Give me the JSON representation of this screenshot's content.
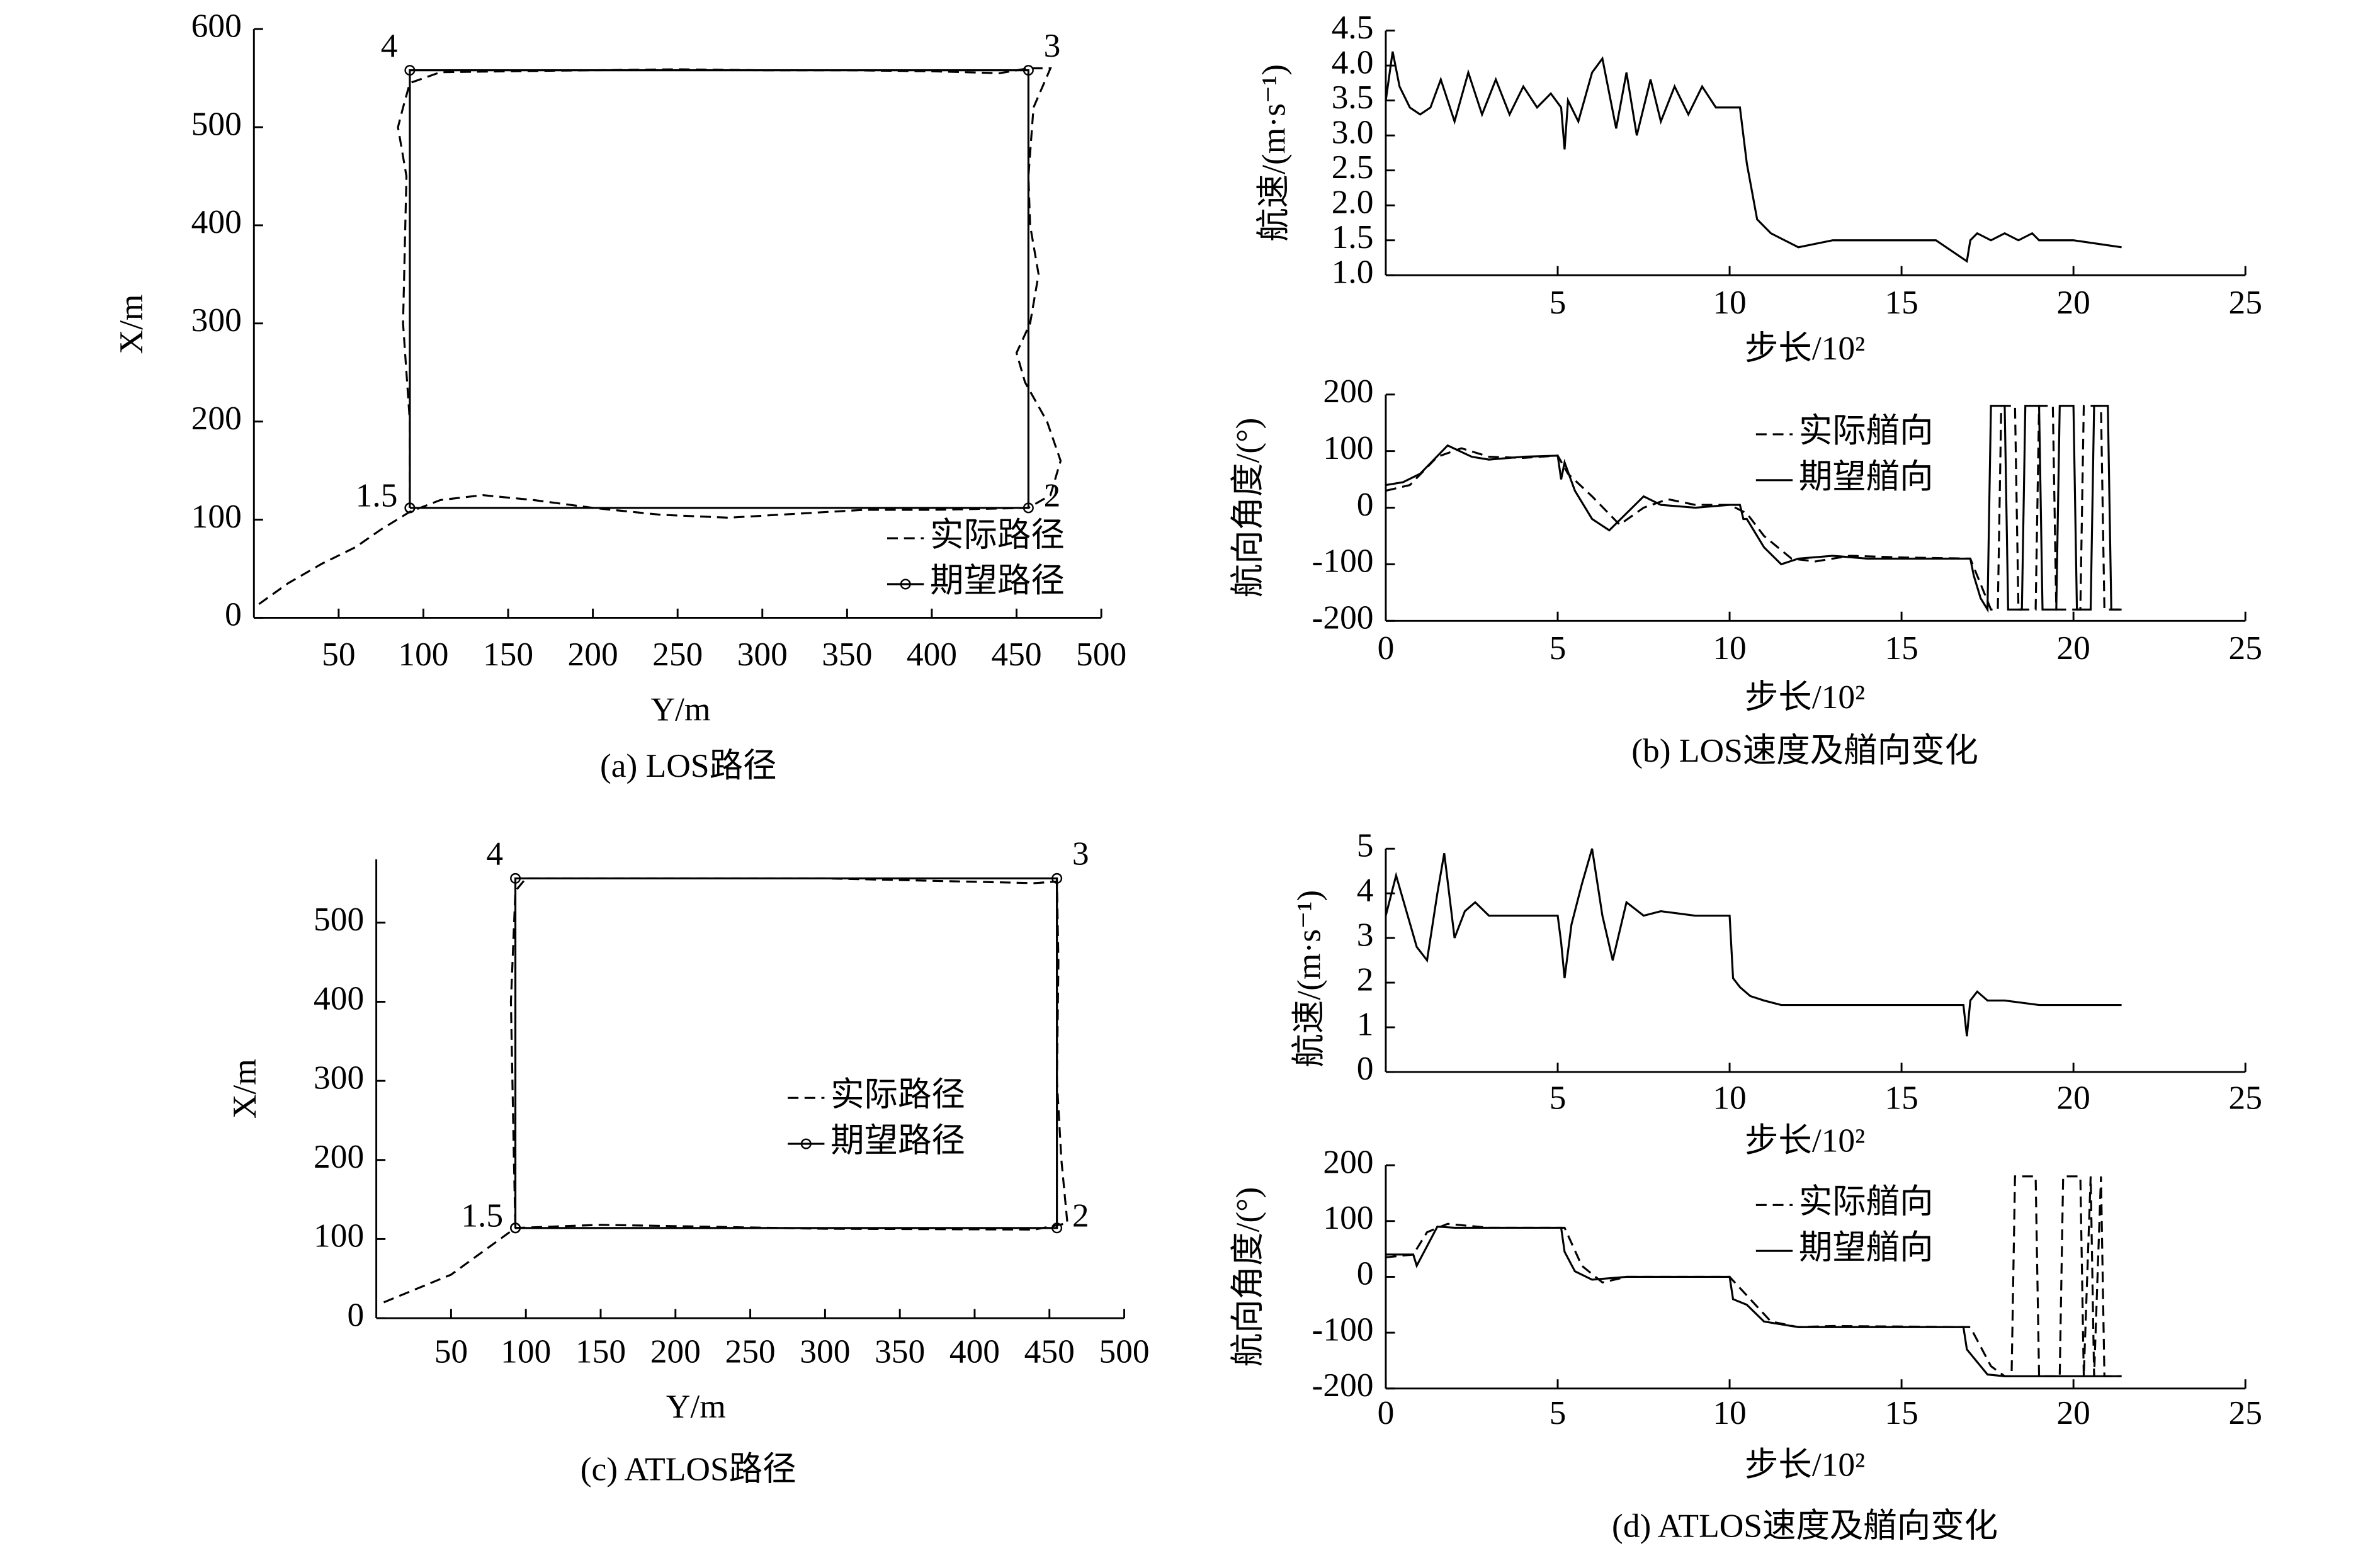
{
  "chart_data": [
    {
      "type": "line",
      "x_label": "Y/m",
      "y_label": "X/m",
      "caption": "(a) LOS路径",
      "xlim": [
        0,
        500
      ],
      "xticks": [
        50,
        100,
        150,
        200,
        250,
        300,
        350,
        400,
        450,
        500
      ],
      "ylim": [
        0,
        600
      ],
      "yticks": [
        0,
        100,
        200,
        300,
        400,
        500,
        600
      ],
      "legend": "lower right",
      "series": [
        {
          "name": "实际路径",
          "color": "#000000",
          "style": "dashed",
          "x": [
            3,
            20,
            40,
            60,
            75,
            92,
            110,
            135,
            165,
            200,
            240,
            280,
            320,
            360,
            400,
            430,
            457,
            470,
            476,
            468,
            455,
            450,
            458,
            463,
            458,
            457,
            460,
            470,
            457,
            440,
            400,
            350,
            300,
            250,
            200,
            150,
            110,
            92,
            88,
            85,
            90,
            88,
            92,
            92
          ],
          "values": [
            14,
            35,
            55,
            72,
            90,
            108,
            120,
            125,
            120,
            112,
            105,
            102,
            106,
            110,
            110,
            111,
            112,
            125,
            160,
            200,
            240,
            270,
            300,
            350,
            400,
            450,
            520,
            560,
            560,
            555,
            557,
            558,
            558,
            559,
            558,
            557,
            556,
            545,
            520,
            500,
            450,
            300,
            200,
            112
          ]
        },
        {
          "name": "期望路径",
          "color": "#000000",
          "style": "solid",
          "marker": "circle",
          "x": [
            92,
            457,
            457,
            92,
            92
          ],
          "values": [
            112,
            112,
            558,
            558,
            112
          ],
          "point_labels": [
            "1.5",
            "2",
            "3",
            "4",
            null
          ]
        }
      ]
    },
    {
      "type": "line",
      "x_label": "步长/10²",
      "y_label": "航速/(m·s⁻¹)",
      "xlim": [
        0,
        25
      ],
      "xticks": [
        5,
        10,
        15,
        20,
        25
      ],
      "ylim": [
        1,
        4.5
      ],
      "yticks": [
        {
          "value": 1,
          "label": "1.0"
        },
        1.5,
        {
          "value": 2,
          "label": "2.0"
        },
        2.5,
        {
          "value": 3,
          "label": "3.0"
        },
        3.5,
        {
          "value": 4,
          "label": "4.0"
        },
        4.5
      ],
      "color": "#000000",
      "x": [
        0,
        0.2,
        0.4,
        0.7,
        1.0,
        1.3,
        1.6,
        2.0,
        2.4,
        2.8,
        3.2,
        3.6,
        4.0,
        4.4,
        4.8,
        5.1,
        5.2,
        5.3,
        5.6,
        6.0,
        6.3,
        6.7,
        7.0,
        7.3,
        7.7,
        8.0,
        8.4,
        8.8,
        9.2,
        9.6,
        10.0,
        10.3,
        10.5,
        10.8,
        11.2,
        11.6,
        12.0,
        13,
        14,
        15,
        16,
        16.9,
        17.0,
        17.2,
        17.6,
        18,
        18.4,
        18.8,
        19,
        20,
        21.4
      ],
      "values": [
        3.5,
        4.2,
        3.7,
        3.4,
        3.3,
        3.4,
        3.8,
        3.2,
        3.9,
        3.3,
        3.8,
        3.3,
        3.7,
        3.4,
        3.6,
        3.4,
        2.8,
        3.5,
        3.2,
        3.9,
        4.1,
        3.1,
        3.9,
        3.0,
        3.8,
        3.2,
        3.7,
        3.3,
        3.7,
        3.4,
        3.4,
        3.4,
        2.6,
        1.8,
        1.6,
        1.5,
        1.4,
        1.5,
        1.5,
        1.5,
        1.5,
        1.2,
        1.5,
        1.6,
        1.5,
        1.6,
        1.5,
        1.6,
        1.5,
        1.5,
        1.4
      ]
    },
    {
      "type": "line",
      "x_label": "步长/10²",
      "y_label": "航向角度/(°)",
      "caption": "(b) LOS速度及艏向变化",
      "xlim": [
        0,
        25
      ],
      "xticks": [
        0,
        5,
        10,
        15,
        20,
        25
      ],
      "ylim": [
        -200,
        200
      ],
      "yticks": [
        -200,
        -100,
        0,
        100,
        200
      ],
      "legend": "upper right",
      "series": [
        {
          "name": "实际艏向",
          "color": "#000000",
          "style": "dashed",
          "x": [
            0,
            0.7,
            1.5,
            2.2,
            3,
            4,
            5,
            5.3,
            6,
            6.8,
            7.5,
            8.2,
            9,
            10,
            10.5,
            11,
            11.8,
            12.5,
            13.5,
            15,
            17,
            17.4,
            17.6,
            17.8,
            17.9,
            18.3,
            18.4,
            18.9,
            19,
            19.4,
            19.5,
            20.2,
            20.3,
            20.8,
            20.9,
            21.4
          ],
          "values": [
            30,
            40,
            90,
            105,
            90,
            88,
            92,
            60,
            20,
            -30,
            0,
            15,
            5,
            5,
            -10,
            -50,
            -90,
            -95,
            -85,
            -88,
            -90,
            -150,
            -180,
            -180,
            180,
            180,
            -180,
            -180,
            180,
            180,
            -180,
            -180,
            180,
            180,
            -180,
            -180
          ]
        },
        {
          "name": "期望艏向",
          "color": "#000000",
          "style": "solid",
          "x": [
            0,
            0.5,
            1,
            1.8,
            2.5,
            3,
            4,
            5,
            5.1,
            5.2,
            5.5,
            6,
            6.5,
            7,
            7.5,
            8,
            9,
            10,
            10.3,
            10.4,
            10.5,
            11,
            11.5,
            12,
            13,
            14,
            15,
            16,
            17,
            17.1,
            17.3,
            17.5,
            17.6,
            17.7,
            18,
            18.1,
            18.5,
            18.6,
            19,
            19.1,
            19.5,
            19.6,
            20,
            20.1,
            20.5,
            20.6,
            21,
            21.1,
            21.4
          ],
          "values": [
            40,
            45,
            60,
            110,
            90,
            85,
            90,
            92,
            50,
            80,
            30,
            -20,
            -40,
            -10,
            20,
            5,
            0,
            5,
            5,
            -20,
            -20,
            -70,
            -100,
            -90,
            -85,
            -90,
            -90,
            -90,
            -90,
            -120,
            -160,
            -180,
            180,
            180,
            180,
            -180,
            -180,
            180,
            180,
            -180,
            -180,
            180,
            180,
            -180,
            -180,
            180,
            180,
            -180,
            -180
          ]
        }
      ]
    },
    {
      "type": "line",
      "x_label": "Y/m",
      "y_label": "X/m",
      "caption": "(c) ATLOS路径",
      "xlim": [
        0,
        500
      ],
      "xticks": [
        50,
        100,
        150,
        200,
        250,
        300,
        350,
        400,
        450,
        500
      ],
      "ylim": [
        0,
        580
      ],
      "yticks": [
        0,
        100,
        200,
        300,
        400,
        500
      ],
      "legend": "center right",
      "series": [
        {
          "name": "实际路径",
          "color": "#000000",
          "style": "dashed",
          "x": [
            5,
            50,
            93,
            150,
            300,
            440,
            462,
            458,
            455,
            456,
            455,
            440,
            300,
            100,
            93,
            90,
            92,
            93
          ],
          "values": [
            20,
            55,
            114,
            118,
            113,
            112,
            120,
            200,
            300,
            450,
            552,
            550,
            556,
            556,
            540,
            400,
            200,
            114
          ]
        },
        {
          "name": "期望路径",
          "color": "#000000",
          "style": "solid",
          "marker": "circle",
          "x": [
            93,
            455,
            455,
            93,
            93
          ],
          "values": [
            114,
            114,
            556,
            556,
            114
          ],
          "point_labels": [
            "1.5",
            "2",
            "3",
            "4",
            null
          ]
        }
      ]
    },
    {
      "type": "line",
      "x_label": "步长/10²",
      "y_label": "航速/(m·s⁻¹)",
      "xlim": [
        0,
        25
      ],
      "xticks": [
        5,
        10,
        15,
        20,
        25
      ],
      "ylim": [
        0,
        5
      ],
      "yticks": [
        0,
        1,
        2,
        3,
        4,
        5
      ],
      "color": "#000000",
      "x": [
        0,
        0.3,
        0.6,
        0.9,
        1.2,
        1.5,
        1.7,
        2.0,
        2.3,
        2.6,
        3,
        4,
        5,
        5.1,
        5.2,
        5.4,
        5.7,
        6.0,
        6.3,
        6.6,
        7,
        7.5,
        8,
        9,
        10,
        10.1,
        10.3,
        10.6,
        11,
        11.5,
        12,
        13,
        15,
        16.8,
        16.9,
        17.0,
        17.2,
        17.5,
        18,
        19,
        21.4
      ],
      "values": [
        3.5,
        4.4,
        3.6,
        2.8,
        2.5,
        4.0,
        4.9,
        3.0,
        3.6,
        3.8,
        3.5,
        3.5,
        3.5,
        2.9,
        2.1,
        3.3,
        4.2,
        5.0,
        3.5,
        2.5,
        3.8,
        3.5,
        3.6,
        3.5,
        3.5,
        2.1,
        1.9,
        1.7,
        1.6,
        1.5,
        1.5,
        1.5,
        1.5,
        1.5,
        0.8,
        1.6,
        1.8,
        1.6,
        1.6,
        1.5,
        1.5
      ]
    },
    {
      "type": "line",
      "x_label": "步长/10²",
      "y_label": "航向角度/(°)",
      "caption": "(d) ATLOS速度及艏向变化",
      "xlim": [
        0,
        25
      ],
      "xticks": [
        0,
        5,
        10,
        15,
        20,
        25
      ],
      "ylim": [
        -200,
        200
      ],
      "yticks": [
        -200,
        -100,
        0,
        100,
        200
      ],
      "legend": "upper right",
      "series": [
        {
          "name": "实际艏向",
          "color": "#000000",
          "style": "dashed",
          "x": [
            0,
            0.8,
            1.2,
            1.8,
            3,
            5.2,
            5.7,
            6.3,
            7,
            10,
            10.6,
            11.2,
            12,
            13,
            17,
            17.6,
            18,
            18.2,
            18.3,
            18.9,
            19.0,
            19.6,
            19.7,
            20.2,
            20.3,
            20.5,
            20.6,
            20.8,
            20.9,
            21.4
          ],
          "values": [
            35,
            40,
            80,
            95,
            88,
            88,
            20,
            -10,
            0,
            0,
            -40,
            -80,
            -90,
            -88,
            -90,
            -160,
            -178,
            -178,
            180,
            180,
            -178,
            -178,
            180,
            180,
            -178,
            180,
            -178,
            180,
            -178,
            -178
          ]
        },
        {
          "name": "期望艏向",
          "color": "#000000",
          "style": "solid",
          "x": [
            0,
            0.8,
            0.9,
            1.5,
            2,
            3,
            5.1,
            5.2,
            5.5,
            6,
            7,
            10,
            10.1,
            10.5,
            11,
            12,
            13,
            16.8,
            16.9,
            17.5,
            18,
            21.4
          ],
          "values": [
            40,
            40,
            20,
            90,
            88,
            88,
            88,
            45,
            10,
            -5,
            0,
            0,
            -40,
            -50,
            -80,
            -90,
            -90,
            -90,
            -130,
            -175,
            -178,
            -178
          ]
        }
      ]
    }
  ]
}
